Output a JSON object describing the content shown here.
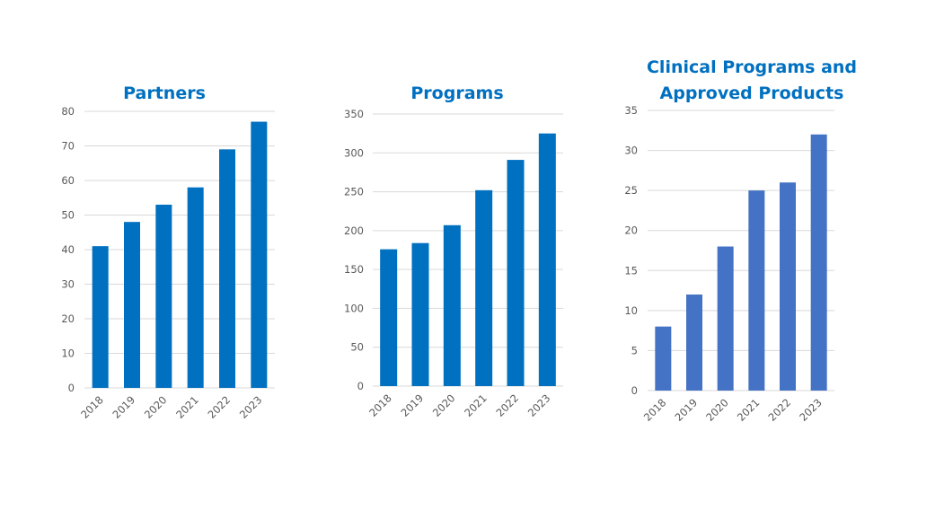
{
  "colors": {
    "title": "#0070C0",
    "grid": "#D9D9D9",
    "axis_text": "#595959"
  },
  "chart_data": [
    {
      "type": "bar",
      "title": [
        "Partners"
      ],
      "categories": [
        "2018",
        "2019",
        "2020",
        "2021",
        "2022",
        "2023"
      ],
      "values": [
        41,
        48,
        53,
        58,
        69,
        77
      ],
      "ylim": [
        0,
        80
      ],
      "yticks": [
        0,
        10,
        20,
        30,
        40,
        50,
        60,
        70,
        80
      ],
      "grid": true,
      "color": "#0070C0"
    },
    {
      "type": "bar",
      "title": [
        "Programs"
      ],
      "categories": [
        "2018",
        "2019",
        "2020",
        "2021",
        "2022",
        "2023"
      ],
      "values": [
        176,
        184,
        207,
        252,
        291,
        325
      ],
      "ylim": [
        0,
        350
      ],
      "yticks": [
        0,
        50,
        100,
        150,
        200,
        250,
        300,
        350
      ],
      "grid": true,
      "color": "#0070C0"
    },
    {
      "type": "bar",
      "title": [
        "Clinical Programs and",
        "Approved Products"
      ],
      "categories": [
        "2018",
        "2019",
        "2020",
        "2021",
        "2022",
        "2023"
      ],
      "values": [
        8,
        12,
        18,
        25,
        26,
        32
      ],
      "ylim": [
        0,
        35
      ],
      "yticks": [
        0,
        5,
        10,
        15,
        20,
        25,
        30,
        35
      ],
      "grid": true,
      "color": "#4472C4"
    }
  ]
}
